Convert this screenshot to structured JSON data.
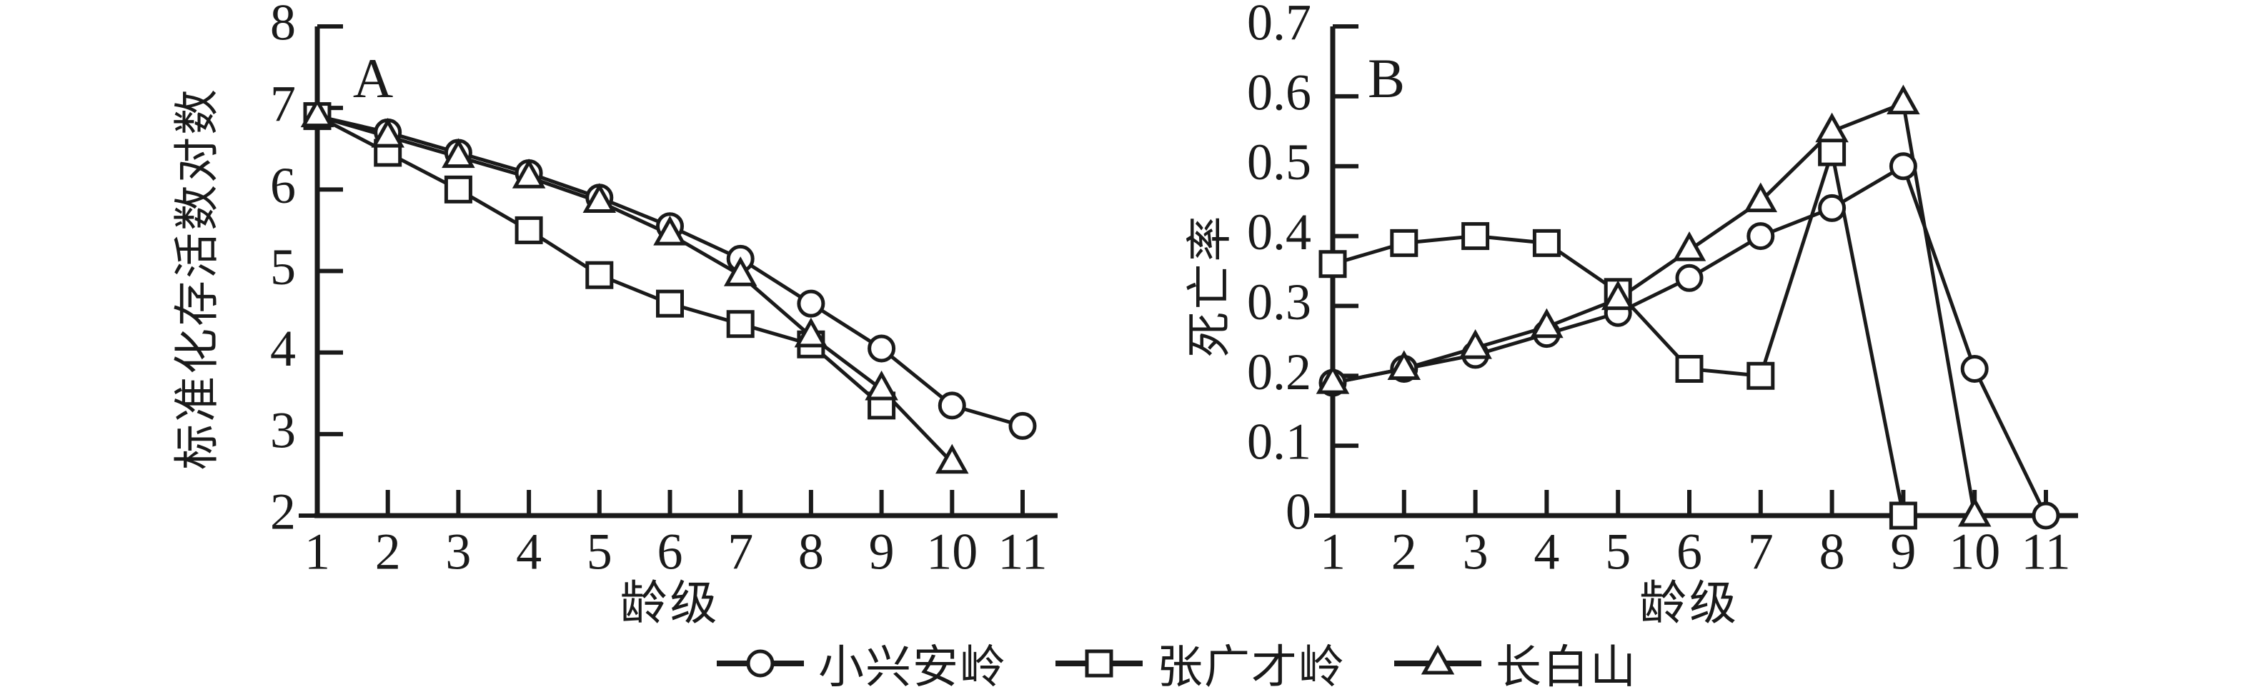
{
  "figure": {
    "background": "#ffffff",
    "ink": "#1a1a1a"
  },
  "legend": {
    "items": [
      {
        "label": "小兴安岭",
        "marker": "circle"
      },
      {
        "label": "张广才岭",
        "marker": "square"
      },
      {
        "label": "长白山",
        "marker": "triangle"
      }
    ]
  },
  "chart_data": [
    {
      "id": "A",
      "type": "line",
      "panel_label": "A",
      "xlabel": "龄级",
      "ylabel": "标准化存活数对数",
      "xlim": [
        1,
        11
      ],
      "ylim": [
        2,
        8
      ],
      "grid": false,
      "legend_position": "bottom",
      "x_ticks": [
        1,
        2,
        3,
        4,
        5,
        6,
        7,
        8,
        9,
        10,
        11
      ],
      "x_tick_labels": [
        "1",
        "2",
        "3",
        "4",
        "5",
        "6",
        "7",
        "8",
        "9",
        "10",
        "11"
      ],
      "y_ticks": [
        2,
        3,
        4,
        5,
        6,
        7,
        8
      ],
      "y_tick_labels": [
        "2",
        "3",
        "4",
        "5",
        "6",
        "7",
        "8"
      ],
      "series": [
        {
          "name": "小兴安岭",
          "marker": "circle",
          "x": [
            1,
            2,
            3,
            4,
            5,
            6,
            7,
            8,
            9,
            10,
            11
          ],
          "values": [
            6.9,
            6.7,
            6.45,
            6.2,
            5.9,
            5.55,
            5.15,
            4.6,
            4.05,
            3.35,
            3.1
          ]
        },
        {
          "name": "张广才岭",
          "marker": "square",
          "x": [
            1,
            2,
            3,
            4,
            5,
            6,
            7,
            8,
            9
          ],
          "values": [
            6.9,
            6.45,
            6.0,
            5.5,
            4.95,
            4.6,
            4.35,
            4.1,
            3.35
          ]
        },
        {
          "name": "长白山",
          "marker": "triangle",
          "x": [
            1,
            2,
            3,
            4,
            5,
            6,
            7,
            8,
            9,
            10
          ],
          "values": [
            6.9,
            6.65,
            6.4,
            6.15,
            5.85,
            5.45,
            4.95,
            4.2,
            3.55,
            2.65
          ]
        }
      ]
    },
    {
      "id": "B",
      "type": "line",
      "panel_label": "B",
      "xlabel": "龄级",
      "ylabel": "死亡率",
      "xlim": [
        1,
        11
      ],
      "ylim": [
        0,
        0.7
      ],
      "grid": false,
      "legend_position": "bottom",
      "x_ticks": [
        1,
        2,
        3,
        4,
        5,
        6,
        7,
        8,
        9,
        10,
        11
      ],
      "x_tick_labels": [
        "1",
        "2",
        "3",
        "4",
        "5",
        "6",
        "7",
        "8",
        "9",
        "10",
        "11"
      ],
      "y_ticks": [
        0,
        0.1,
        0.2,
        0.3,
        0.4,
        0.5,
        0.6,
        0.7
      ],
      "y_tick_labels": [
        "0",
        "0.1",
        "0.2",
        "0.3",
        "0.4",
        "0.5",
        "0.6",
        "0.7"
      ],
      "series": [
        {
          "name": "小兴安岭",
          "marker": "circle",
          "x": [
            1,
            2,
            3,
            4,
            5,
            6,
            7,
            8,
            9,
            10,
            11
          ],
          "values": [
            0.19,
            0.21,
            0.23,
            0.26,
            0.29,
            0.34,
            0.4,
            0.44,
            0.5,
            0.21,
            0
          ]
        },
        {
          "name": "张广才岭",
          "marker": "square",
          "x": [
            1,
            2,
            3,
            4,
            5,
            6,
            7,
            8,
            9
          ],
          "values": [
            0.36,
            0.39,
            0.4,
            0.39,
            0.32,
            0.21,
            0.2,
            0.52,
            0
          ]
        },
        {
          "name": "长白山",
          "marker": "triangle",
          "x": [
            1,
            2,
            3,
            4,
            5,
            6,
            7,
            8,
            9,
            10
          ],
          "values": [
            0.19,
            0.21,
            0.24,
            0.27,
            0.31,
            0.38,
            0.45,
            0.55,
            0.59,
            0
          ]
        }
      ]
    }
  ]
}
